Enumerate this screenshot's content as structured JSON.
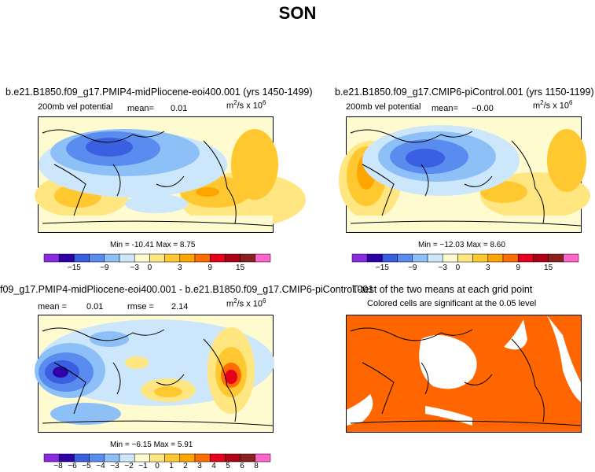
{
  "title": "SON",
  "colorbar_colors": [
    "#8a2be2",
    "#2e00a8",
    "#3a5fe0",
    "#5a8cf0",
    "#8ec0f8",
    "#cce6fb",
    "#fffbd0",
    "#ffe680",
    "#ffc830",
    "#ffa500",
    "#ff6c00",
    "#e6001e",
    "#b00018",
    "#8b2020",
    "#ff66cc"
  ],
  "significant_color": "#ff6600",
  "panels": {
    "p1": {
      "title": "b.e21.B1850.f09_g17.PMIP4-midPliocene-eoi400.001 (yrs 1450-1499)",
      "variable": "200mb vel potential",
      "mean_label": "mean=",
      "mean_value": "0.01",
      "units": "m",
      "units_exp": "2",
      "units_rest": "/s x 10",
      "units_exp2": "6",
      "minmax": "Min = -10.41  Max =   8.75",
      "cbar_ticks": [
        "−15",
        "−9",
        "−3",
        "0",
        "3",
        "9",
        "15"
      ]
    },
    "p2": {
      "title": "b.e21.B1850.f09_g17.CMIP6-piControl.001 (yrs 1150-1199)",
      "variable": "200mb vel potential",
      "mean_label": "mean=",
      "mean_value": "−0.00",
      "units": "m",
      "units_exp": "2",
      "units_rest": "/s x 10",
      "units_exp2": "6",
      "minmax": "Min = −12.03  Max =   8.60",
      "cbar_ticks": [
        "−15",
        "−9",
        "−3",
        "0",
        "3",
        "9",
        "15"
      ]
    },
    "p3": {
      "title": "f09_g17.PMIP4-midPliocene-eoi400.001 - b.e21.B1850.f09_g17.CMIP6-piControl.001",
      "mean_label": "mean =",
      "mean_value": "0.01",
      "rmse_label": "rmse =",
      "rmse_value": "2.14",
      "units": "m",
      "units_exp": "2",
      "units_rest": "/s x 10",
      "units_exp2": "6",
      "minmax": "Min =  −6.15  Max =   5.91",
      "cbar_ticks": [
        "−8",
        "−6",
        "−5",
        "−4",
        "−3",
        "−2",
        "−1",
        "0",
        "1",
        "2",
        "3",
        "4",
        "5",
        "6",
        "8"
      ]
    },
    "p4": {
      "title": "T-test of the two means at each grid point",
      "subtitle": "Colored cells are significant at the 0.05 level"
    }
  }
}
